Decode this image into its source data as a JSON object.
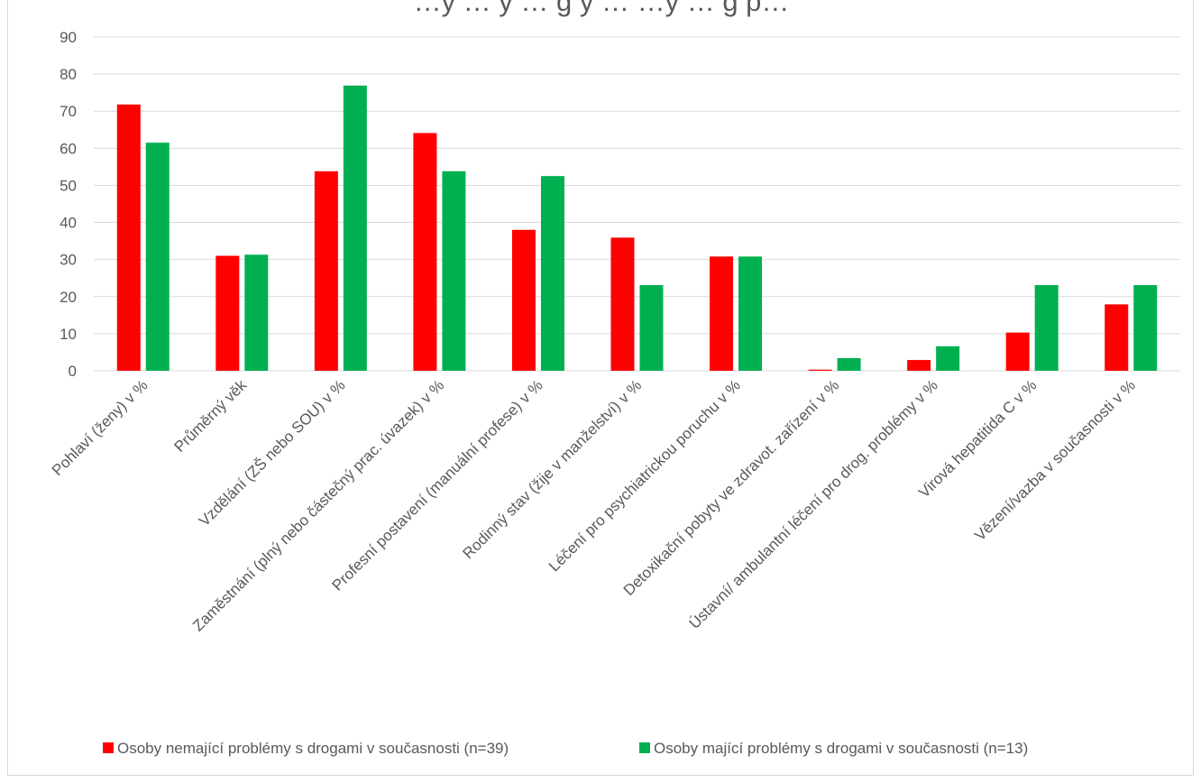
{
  "chart_data": {
    "type": "bar",
    "title": "…y … y … g y … …y … g p…",
    "categories": [
      "Pohlaví (ženy) v %",
      "Průměrný věk",
      "Vzdělání (ZŠ nebo SOU) v %",
      "Zaměstnání (plný nebo částečný prac. úvazek) v %",
      "Profesní postavení (manuální profese) v %",
      "Rodinný stav (žije v manželství) v %",
      "Léčení pro psychiatrickou poruchu v %",
      "Detoxikační pobyty ve zdravot. zařízení v %",
      "Ústavní/ ambulantní léčení pro drog. problémy v %",
      "Virová hepatitida C v %",
      "Vězení/vazba v současnosti v %"
    ],
    "series": [
      {
        "name": "Osoby nemající problémy s drogami v současnosti (n=39)",
        "color": "#ff0000",
        "values": [
          71.8,
          31,
          53.8,
          64.1,
          38,
          35.9,
          30.8,
          0.3,
          2.9,
          10.3,
          17.9
        ]
      },
      {
        "name": "Osoby mající problémy s drogami v současnosti (n=13)",
        "color": "#00b050",
        "values": [
          61.5,
          31.3,
          76.9,
          53.8,
          52.5,
          23.1,
          30.8,
          3.4,
          6.6,
          23.1,
          23.1
        ]
      }
    ],
    "ylim": [
      0,
      90
    ],
    "yticks": [
      "0",
      "10",
      "20",
      "30",
      "40",
      "50",
      "60",
      "70",
      "80",
      "90"
    ],
    "grid": true,
    "gridcolor": "#d9d9d9",
    "legend": "bottom"
  }
}
